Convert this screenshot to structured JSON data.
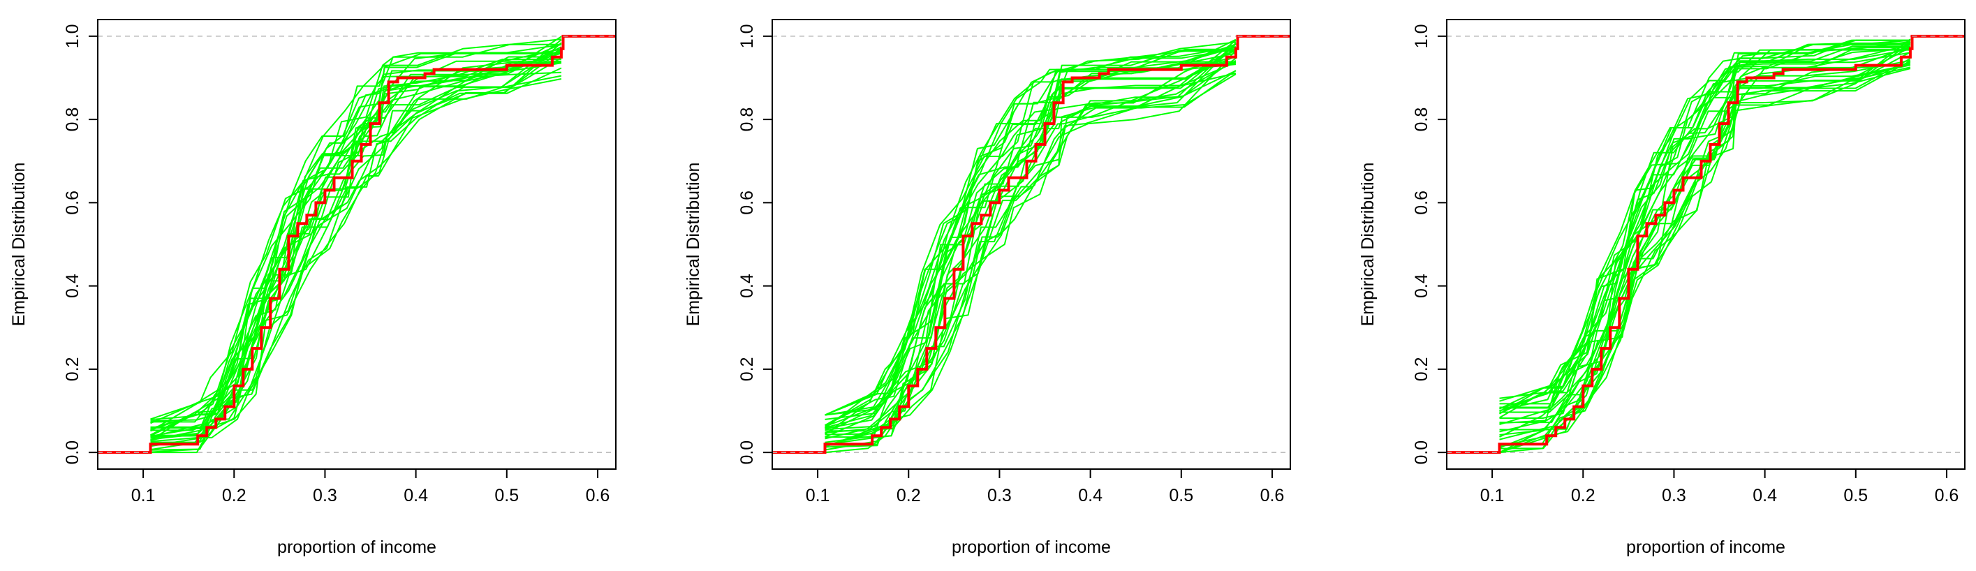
{
  "colors": {
    "background": "#ffffff",
    "ecdf_observed": "#ff0000",
    "ecdf_simulated": "#00ff00",
    "reference_lines": "#bebebe",
    "axes": "#000000"
  },
  "chart_data": [
    {
      "type": "line",
      "title": "",
      "xlabel": "proportion of income",
      "ylabel": "Empirical Distribution",
      "xlim": [
        0.05,
        0.62
      ],
      "ylim": [
        -0.04,
        1.04
      ],
      "xticks": [
        0.1,
        0.2,
        0.3,
        0.4,
        0.5,
        0.6
      ],
      "xtick_labels": [
        "0.1",
        "0.2",
        "0.3",
        "0.4",
        "0.5",
        "0.6"
      ],
      "yticks": [
        0.0,
        0.2,
        0.4,
        0.6,
        0.8,
        1.0
      ],
      "ytick_labels": [
        "0.0",
        "0.2",
        "0.4",
        "0.6",
        "0.8",
        "1.0"
      ],
      "reference_lines_y": [
        0,
        1
      ],
      "grid": false,
      "legend": "none",
      "observed_step": {
        "x": [
          0.05,
          0.108,
          0.108,
          0.16,
          0.17,
          0.18,
          0.19,
          0.2,
          0.21,
          0.22,
          0.23,
          0.24,
          0.25,
          0.26,
          0.27,
          0.28,
          0.29,
          0.3,
          0.31,
          0.32,
          0.33,
          0.34,
          0.35,
          0.36,
          0.37,
          0.38,
          0.41,
          0.42,
          0.5,
          0.55,
          0.56,
          0.562,
          0.62
        ],
        "y": [
          0.0,
          0.0,
          0.02,
          0.04,
          0.06,
          0.08,
          0.11,
          0.16,
          0.2,
          0.25,
          0.3,
          0.37,
          0.44,
          0.52,
          0.55,
          0.57,
          0.6,
          0.63,
          0.66,
          0.66,
          0.7,
          0.74,
          0.79,
          0.84,
          0.89,
          0.9,
          0.91,
          0.92,
          0.93,
          0.95,
          0.97,
          1.0,
          1.0
        ]
      },
      "simulated_band": {
        "count": 30,
        "x": [
          0.108,
          0.16,
          0.18,
          0.2,
          0.22,
          0.24,
          0.26,
          0.28,
          0.3,
          0.32,
          0.34,
          0.36,
          0.37,
          0.4,
          0.45,
          0.5,
          0.56
        ],
        "y_low": [
          0.0,
          0.0,
          0.03,
          0.08,
          0.14,
          0.25,
          0.33,
          0.44,
          0.49,
          0.55,
          0.61,
          0.66,
          0.71,
          0.8,
          0.82,
          0.83,
          0.87
        ],
        "y_high": [
          0.08,
          0.12,
          0.18,
          0.26,
          0.41,
          0.51,
          0.61,
          0.7,
          0.76,
          0.82,
          0.88,
          0.93,
          0.95,
          0.96,
          0.97,
          0.98,
          1.0
        ]
      }
    },
    {
      "type": "line",
      "title": "",
      "xlabel": "proportion of income",
      "ylabel": "Empirical Distribution",
      "xlim": [
        0.05,
        0.62
      ],
      "ylim": [
        -0.04,
        1.04
      ],
      "xticks": [
        0.1,
        0.2,
        0.3,
        0.4,
        0.5,
        0.6
      ],
      "xtick_labels": [
        "0.1",
        "0.2",
        "0.3",
        "0.4",
        "0.5",
        "0.6"
      ],
      "yticks": [
        0.0,
        0.2,
        0.4,
        0.6,
        0.8,
        1.0
      ],
      "ytick_labels": [
        "0.0",
        "0.2",
        "0.4",
        "0.6",
        "0.8",
        "1.0"
      ],
      "reference_lines_y": [
        0,
        1
      ],
      "grid": false,
      "legend": "none",
      "observed_step": {
        "x": [
          0.05,
          0.108,
          0.108,
          0.16,
          0.17,
          0.18,
          0.19,
          0.2,
          0.21,
          0.22,
          0.23,
          0.24,
          0.25,
          0.26,
          0.27,
          0.28,
          0.29,
          0.3,
          0.31,
          0.32,
          0.33,
          0.34,
          0.35,
          0.36,
          0.37,
          0.38,
          0.41,
          0.42,
          0.5,
          0.55,
          0.56,
          0.562,
          0.62
        ],
        "y": [
          0.0,
          0.0,
          0.02,
          0.04,
          0.06,
          0.08,
          0.11,
          0.16,
          0.2,
          0.25,
          0.3,
          0.37,
          0.44,
          0.52,
          0.55,
          0.57,
          0.6,
          0.63,
          0.66,
          0.66,
          0.7,
          0.74,
          0.79,
          0.84,
          0.89,
          0.9,
          0.91,
          0.92,
          0.93,
          0.95,
          0.97,
          1.0,
          1.0
        ]
      },
      "simulated_band": {
        "count": 30,
        "x": [
          0.108,
          0.16,
          0.18,
          0.2,
          0.22,
          0.24,
          0.26,
          0.28,
          0.3,
          0.32,
          0.34,
          0.36,
          0.37,
          0.4,
          0.45,
          0.5,
          0.56
        ],
        "y_low": [
          0.0,
          0.01,
          0.04,
          0.09,
          0.15,
          0.24,
          0.33,
          0.43,
          0.5,
          0.56,
          0.62,
          0.69,
          0.76,
          0.79,
          0.8,
          0.82,
          0.88
        ],
        "y_high": [
          0.09,
          0.14,
          0.2,
          0.29,
          0.44,
          0.55,
          0.65,
          0.73,
          0.79,
          0.85,
          0.89,
          0.92,
          0.93,
          0.94,
          0.95,
          0.97,
          1.0
        ]
      }
    },
    {
      "type": "line",
      "title": "",
      "xlabel": "proportion of income",
      "ylabel": "Empirical Distribution",
      "xlim": [
        0.05,
        0.62
      ],
      "ylim": [
        -0.04,
        1.04
      ],
      "xticks": [
        0.1,
        0.2,
        0.3,
        0.4,
        0.5,
        0.6
      ],
      "xtick_labels": [
        "0.1",
        "0.2",
        "0.3",
        "0.4",
        "0.5",
        "0.6"
      ],
      "yticks": [
        0.0,
        0.2,
        0.4,
        0.6,
        0.8,
        1.0
      ],
      "ytick_labels": [
        "0.0",
        "0.2",
        "0.4",
        "0.6",
        "0.8",
        "1.0"
      ],
      "reference_lines_y": [
        0,
        1
      ],
      "grid": false,
      "legend": "none",
      "observed_step": {
        "x": [
          0.05,
          0.108,
          0.108,
          0.16,
          0.17,
          0.18,
          0.19,
          0.2,
          0.21,
          0.22,
          0.23,
          0.24,
          0.25,
          0.26,
          0.27,
          0.28,
          0.29,
          0.3,
          0.31,
          0.32,
          0.33,
          0.34,
          0.35,
          0.36,
          0.37,
          0.38,
          0.41,
          0.42,
          0.5,
          0.55,
          0.56,
          0.562,
          0.62
        ],
        "y": [
          0.0,
          0.0,
          0.02,
          0.04,
          0.06,
          0.08,
          0.11,
          0.16,
          0.2,
          0.25,
          0.3,
          0.37,
          0.44,
          0.52,
          0.55,
          0.57,
          0.6,
          0.63,
          0.66,
          0.66,
          0.7,
          0.74,
          0.79,
          0.84,
          0.89,
          0.9,
          0.91,
          0.92,
          0.93,
          0.95,
          0.97,
          1.0,
          1.0
        ]
      },
      "simulated_band": {
        "count": 30,
        "x": [
          0.108,
          0.16,
          0.18,
          0.2,
          0.22,
          0.24,
          0.26,
          0.28,
          0.3,
          0.32,
          0.34,
          0.36,
          0.37,
          0.4,
          0.45,
          0.5,
          0.56
        ],
        "y_low": [
          0.0,
          0.01,
          0.05,
          0.1,
          0.18,
          0.27,
          0.37,
          0.45,
          0.52,
          0.58,
          0.65,
          0.73,
          0.82,
          0.83,
          0.84,
          0.85,
          0.9
        ],
        "y_high": [
          0.13,
          0.16,
          0.21,
          0.29,
          0.42,
          0.53,
          0.63,
          0.72,
          0.78,
          0.85,
          0.9,
          0.94,
          0.96,
          0.97,
          0.98,
          0.99,
          1.0
        ]
      }
    }
  ]
}
